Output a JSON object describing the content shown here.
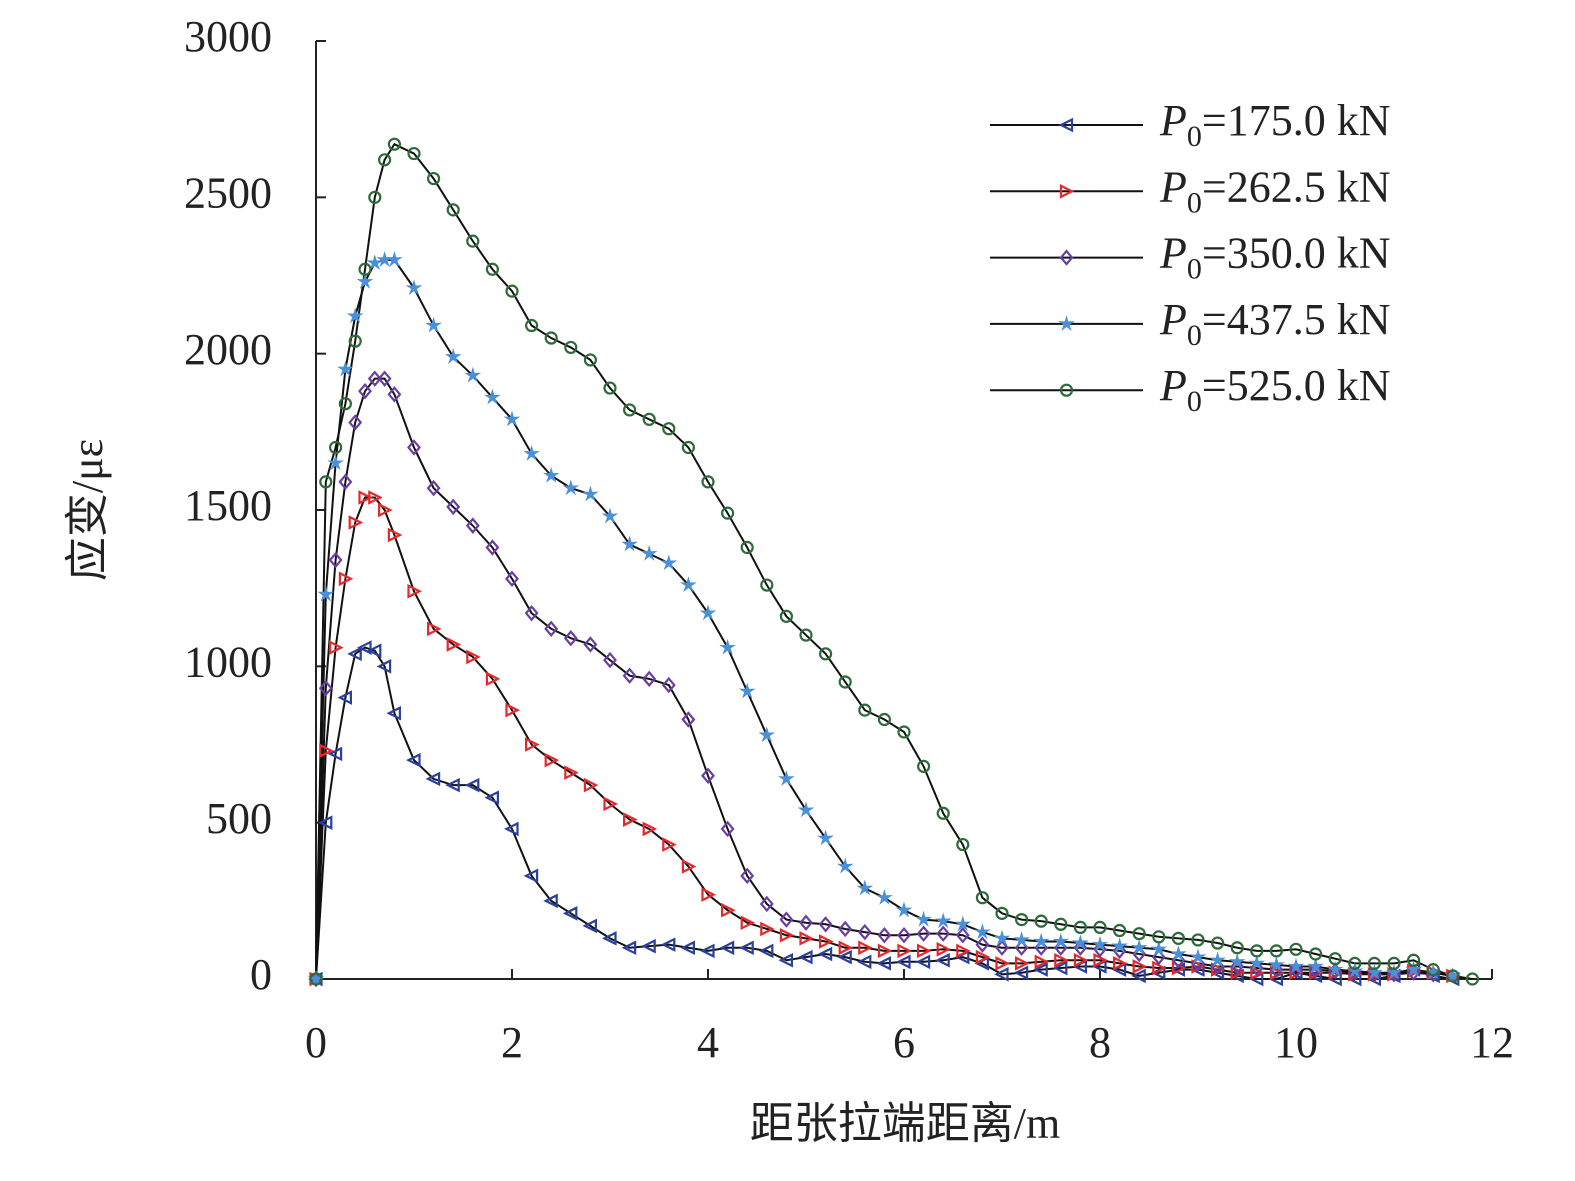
{
  "chart_data": {
    "type": "line",
    "xlabel": "距张拉端距离/m",
    "ylabel": "应变/με",
    "x": [
      0,
      0.1,
      0.2,
      0.3,
      0.4,
      0.5,
      0.6,
      0.7,
      0.8,
      1.0,
      1.2,
      1.4,
      1.6,
      1.8,
      2.0,
      2.2,
      2.4,
      2.6,
      2.8,
      3.0,
      3.2,
      3.4,
      3.6,
      3.8,
      4.0,
      4.2,
      4.4,
      4.6,
      4.8,
      5.0,
      5.2,
      5.4,
      5.6,
      5.8,
      6.0,
      6.2,
      6.4,
      6.6,
      6.8,
      7.0,
      7.2,
      7.4,
      7.6,
      7.8,
      8.0,
      8.2,
      8.4,
      8.6,
      8.8,
      9.0,
      9.2,
      9.4,
      9.6,
      9.8,
      10.0,
      10.2,
      10.4,
      10.6,
      10.8,
      11.0,
      11.2,
      11.4,
      11.6,
      11.8
    ],
    "xlim": [
      0,
      12
    ],
    "xticks": [
      0,
      2,
      4,
      6,
      8,
      10,
      12
    ],
    "ylim": [
      0,
      3000
    ],
    "yticks": [
      0,
      500,
      1000,
      1500,
      2000,
      2500,
      3000
    ],
    "legend": "upper right",
    "series": [
      {
        "name": "P0=175.0 kN",
        "color": "#2b3f9c",
        "marker": "triangle-left",
        "values": [
          0,
          500,
          720,
          900,
          1040,
          1060,
          1050,
          1000,
          850,
          700,
          640,
          620,
          620,
          580,
          480,
          330,
          250,
          210,
          170,
          130,
          100,
          105,
          110,
          100,
          90,
          100,
          100,
          90,
          60,
          70,
          80,
          70,
          55,
          50,
          55,
          55,
          60,
          70,
          50,
          15,
          20,
          30,
          35,
          40,
          40,
          30,
          10,
          20,
          30,
          30,
          20,
          10,
          0,
          0,
          20,
          10,
          0,
          0,
          0,
          10,
          30,
          10,
          0,
          null
        ]
      },
      {
        "name": "P0=262.5 kN",
        "color": "#e8272a",
        "marker": "triangle-right",
        "values": [
          0,
          730,
          1060,
          1280,
          1460,
          1540,
          1540,
          1500,
          1420,
          1240,
          1120,
          1070,
          1030,
          960,
          860,
          750,
          700,
          660,
          620,
          560,
          510,
          480,
          430,
          360,
          270,
          220,
          180,
          160,
          140,
          130,
          120,
          100,
          100,
          90,
          90,
          90,
          95,
          90,
          70,
          50,
          50,
          55,
          60,
          60,
          60,
          50,
          40,
          35,
          35,
          40,
          30,
          20,
          20,
          20,
          20,
          20,
          20,
          15,
          15,
          15,
          25,
          20,
          10,
          null
        ]
      },
      {
        "name": "P0=350.0 kN",
        "color": "#6a3ea1",
        "marker": "diamond",
        "values": [
          0,
          930,
          1340,
          1590,
          1780,
          1880,
          1920,
          1920,
          1870,
          1700,
          1570,
          1510,
          1450,
          1380,
          1280,
          1170,
          1120,
          1090,
          1070,
          1020,
          970,
          960,
          940,
          830,
          650,
          480,
          330,
          240,
          190,
          180,
          175,
          160,
          150,
          140,
          140,
          145,
          145,
          140,
          110,
          100,
          100,
          100,
          100,
          100,
          95,
          90,
          80,
          70,
          60,
          50,
          40,
          40,
          35,
          30,
          30,
          30,
          25,
          20,
          15,
          15,
          20,
          15,
          null,
          null
        ]
      },
      {
        "name": "P0=437.5 kN",
        "color": "#4a90d9",
        "marker": "star",
        "values": [
          0,
          1230,
          1650,
          1950,
          2120,
          2230,
          2290,
          2300,
          2300,
          2210,
          2090,
          1990,
          1930,
          1860,
          1790,
          1680,
          1610,
          1570,
          1550,
          1480,
          1390,
          1360,
          1330,
          1260,
          1170,
          1060,
          920,
          780,
          640,
          540,
          450,
          360,
          290,
          260,
          220,
          190,
          185,
          175,
          150,
          130,
          125,
          120,
          120,
          115,
          110,
          105,
          100,
          95,
          80,
          70,
          60,
          55,
          50,
          45,
          40,
          40,
          30,
          25,
          20,
          20,
          30,
          20,
          10,
          null
        ]
      },
      {
        "name": "P0=525.0 kN",
        "color": "#2e6b3a",
        "marker": "circle",
        "values": [
          0,
          1590,
          1700,
          1840,
          2040,
          2270,
          2500,
          2620,
          2670,
          2640,
          2560,
          2460,
          2360,
          2270,
          2200,
          2090,
          2050,
          2020,
          1980,
          1890,
          1820,
          1790,
          1760,
          1700,
          1590,
          1490,
          1380,
          1260,
          1160,
          1100,
          1040,
          950,
          860,
          830,
          790,
          680,
          530,
          430,
          260,
          210,
          190,
          185,
          175,
          165,
          165,
          155,
          145,
          135,
          130,
          125,
          115,
          100,
          90,
          90,
          95,
          80,
          65,
          50,
          50,
          50,
          60,
          30,
          10,
          0
        ]
      }
    ]
  }
}
